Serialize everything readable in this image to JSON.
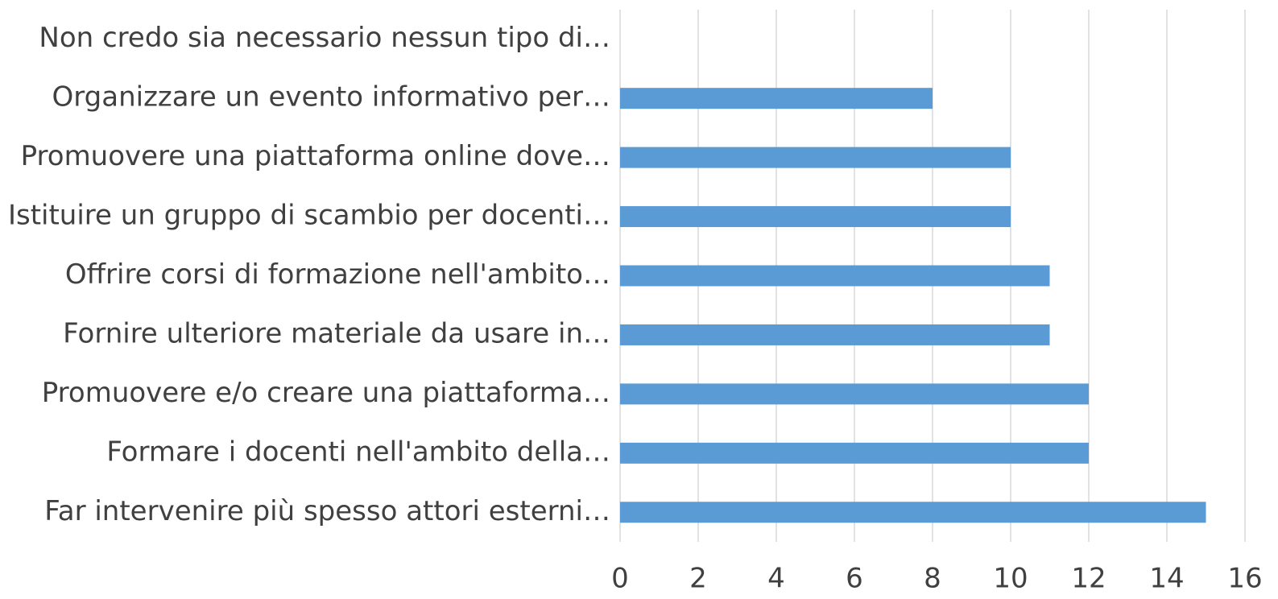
{
  "chart_data": {
    "type": "barh",
    "categories": [
      "Non credo sia necessario nessun tipo di…",
      "Organizzare un evento informativo per…",
      "Promuovere una piattaforma online dove…",
      "Istituire un gruppo di scambio per docenti…",
      "Offrire corsi di formazione nell'ambito…",
      "Fornire ulteriore materiale da usare in…",
      "Promuovere e/o creare una piattaforma…",
      "Formare i docenti nell'ambito della…",
      "Far intervenire più spesso attori esterni…"
    ],
    "values": [
      0,
      8,
      10,
      10,
      11,
      11,
      12,
      12,
      15
    ],
    "color": "#5b9bd5",
    "xlim": [
      0,
      16
    ],
    "xticks": [
      0,
      2,
      4,
      6,
      8,
      10,
      12,
      14,
      16
    ],
    "grid": true
  }
}
